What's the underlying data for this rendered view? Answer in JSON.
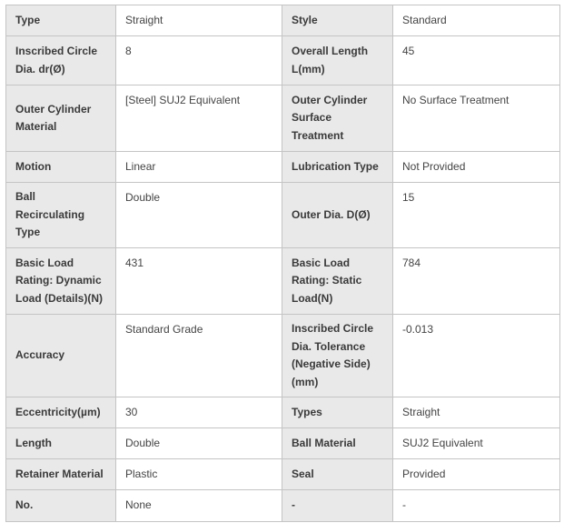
{
  "rows": [
    {
      "k1": "Type",
      "v1": "Straight",
      "k2": "Style",
      "v2": "Standard"
    },
    {
      "k1": "Inscribed Circle Dia. dr(Ø)",
      "v1": "8",
      "k2": "Overall Length L(mm)",
      "v2": "45"
    },
    {
      "k1": "Outer Cylinder Material",
      "v1": "[Steel] SUJ2 Equivalent",
      "k2": "Outer Cylinder Surface Treatment",
      "v2": "No Surface Treatment"
    },
    {
      "k1": "Motion",
      "v1": "Linear",
      "k2": "Lubrication Type",
      "v2": "Not Provided"
    },
    {
      "k1": "Ball Recirculating Type",
      "v1": "Double",
      "k2": "Outer Dia. D(Ø)",
      "v2": "15"
    },
    {
      "k1": "Basic Load Rating: Dynamic Load (Details)(N)",
      "v1": "431",
      "k2": "Basic Load Rating: Static Load(N)",
      "v2": "784"
    },
    {
      "k1": "Accuracy",
      "v1": "Standard Grade",
      "k2": "Inscribed Circle Dia. Tolerance (Negative Side)(mm)",
      "v2": "-0.013"
    },
    {
      "k1": "Eccentricity(µm)",
      "v1": "30",
      "k2": "Types",
      "v2": "Straight"
    },
    {
      "k1": "Length",
      "v1": "Double",
      "k2": "Ball Material",
      "v2": "SUJ2 Equivalent"
    },
    {
      "k1": "Retainer Material",
      "v1": "Plastic",
      "k2": "Seal",
      "v2": "Provided"
    },
    {
      "k1": "No.",
      "v1": "None",
      "k2": "-",
      "v2": "-"
    }
  ]
}
